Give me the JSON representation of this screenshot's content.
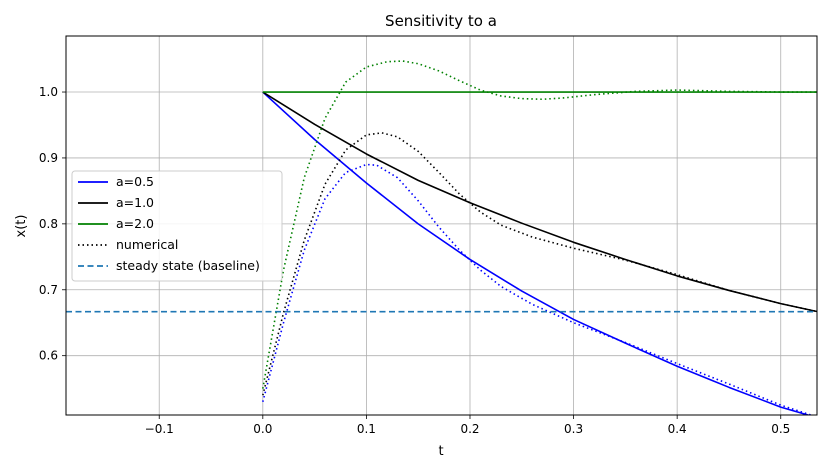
{
  "chart_data": {
    "type": "line",
    "title": "Sensitivity to a",
    "xlabel": "t",
    "ylabel": "x(t)",
    "xlim": [
      -0.19,
      0.535
    ],
    "ylim": [
      0.51,
      1.085
    ],
    "xticks": [
      -0.1,
      0.0,
      0.1,
      0.2,
      0.3,
      0.4,
      0.5
    ],
    "xtick_labels": [
      "−0.1",
      "0.0",
      "0.1",
      "0.2",
      "0.3",
      "0.4",
      "0.5"
    ],
    "yticks": [
      0.6,
      0.7,
      0.8,
      0.9,
      1.0
    ],
    "ytick_labels": [
      "0.6",
      "0.7",
      "0.8",
      "0.9",
      "1.0"
    ],
    "grid": true,
    "legend_position": "center-left",
    "series": [
      {
        "name": "a=0.5",
        "color": "#0000ff",
        "style": "solid",
        "x": [
          0,
          0.05,
          0.1,
          0.15,
          0.2,
          0.25,
          0.3,
          0.35,
          0.4,
          0.45,
          0.5,
          0.535
        ],
        "y": [
          1.0,
          0.928,
          0.862,
          0.8,
          0.746,
          0.698,
          0.655,
          0.619,
          0.584,
          0.552,
          0.522,
          0.506
        ]
      },
      {
        "name": "a=1.0",
        "color": "#000000",
        "style": "solid",
        "x": [
          0,
          0.05,
          0.1,
          0.15,
          0.2,
          0.25,
          0.3,
          0.35,
          0.4,
          0.45,
          0.5,
          0.535
        ],
        "y": [
          1.0,
          0.951,
          0.906,
          0.866,
          0.832,
          0.801,
          0.772,
          0.746,
          0.721,
          0.699,
          0.679,
          0.667
        ]
      },
      {
        "name": "a=2.0",
        "color": "#008000",
        "style": "solid",
        "x": [
          0,
          0.535
        ],
        "y": [
          1.0,
          1.0
        ]
      },
      {
        "name": "numerical",
        "color": "#000000",
        "style": "dotted",
        "x": [
          0,
          0.02,
          0.04,
          0.06,
          0.08,
          0.1,
          0.115,
          0.13,
          0.15,
          0.17,
          0.19,
          0.21,
          0.23,
          0.26,
          0.3,
          0.35,
          0.4,
          0.45,
          0.5,
          0.535
        ],
        "y": [
          0.54,
          0.665,
          0.775,
          0.86,
          0.912,
          0.935,
          0.938,
          0.932,
          0.91,
          0.878,
          0.845,
          0.818,
          0.798,
          0.78,
          0.763,
          0.745,
          0.723,
          0.699,
          0.679,
          0.667
        ]
      },
      {
        "name": "numerical a=0.5",
        "color": "#0000ff",
        "style": "dotted",
        "in_legend": false,
        "x": [
          0,
          0.02,
          0.04,
          0.06,
          0.08,
          0.1,
          0.11,
          0.13,
          0.15,
          0.17,
          0.19,
          0.21,
          0.23,
          0.26,
          0.3,
          0.35,
          0.4,
          0.45,
          0.5,
          0.535
        ],
        "y": [
          0.53,
          0.65,
          0.76,
          0.838,
          0.878,
          0.89,
          0.889,
          0.87,
          0.835,
          0.795,
          0.76,
          0.73,
          0.705,
          0.678,
          0.65,
          0.62,
          0.588,
          0.557,
          0.525,
          0.507
        ]
      },
      {
        "name": "numerical a=2.0",
        "color": "#008000",
        "style": "dotted",
        "in_legend": false,
        "x": [
          0,
          0.02,
          0.04,
          0.06,
          0.08,
          0.1,
          0.12,
          0.135,
          0.15,
          0.17,
          0.19,
          0.21,
          0.23,
          0.25,
          0.27,
          0.29,
          0.32,
          0.36,
          0.4,
          0.45,
          0.5,
          0.535
        ],
        "y": [
          0.55,
          0.73,
          0.87,
          0.96,
          1.015,
          1.038,
          1.046,
          1.047,
          1.043,
          1.032,
          1.017,
          1.003,
          0.994,
          0.99,
          0.989,
          0.991,
          0.996,
          1.001,
          1.003,
          1.001,
          1.0,
          1.0
        ]
      },
      {
        "name": "steady state (baseline)",
        "color": "#1f77b4",
        "style": "dashed",
        "x": [
          -0.19,
          0.535
        ],
        "y": [
          0.6667,
          0.6667
        ]
      }
    ]
  },
  "legend": {
    "items": [
      {
        "label": "a=0.5",
        "color": "#0000ff",
        "style": "solid"
      },
      {
        "label": "a=1.0",
        "color": "#000000",
        "style": "solid"
      },
      {
        "label": "a=2.0",
        "color": "#008000",
        "style": "solid"
      },
      {
        "label": "numerical",
        "color": "#000000",
        "style": "dotted"
      },
      {
        "label": "steady state (baseline)",
        "color": "#1f77b4",
        "style": "dashed"
      }
    ]
  }
}
